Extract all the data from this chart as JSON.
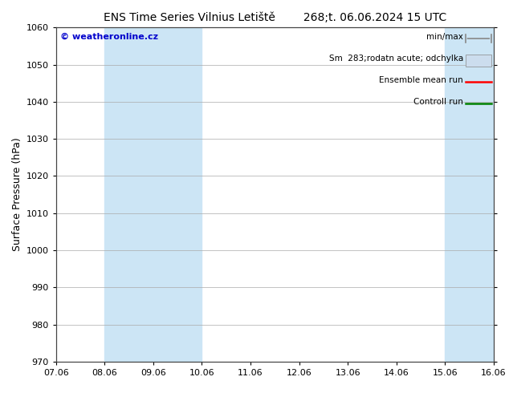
{
  "title_left": "ENS Time Series Vilnius Letiště",
  "title_right": "268;t. 06.06.2024 15 UTC",
  "ylabel": "Surface Pressure (hPa)",
  "ylim": [
    970,
    1060
  ],
  "yticks": [
    970,
    980,
    990,
    1000,
    1010,
    1020,
    1030,
    1040,
    1050,
    1060
  ],
  "xlabels": [
    "07.06",
    "08.06",
    "09.06",
    "10.06",
    "11.06",
    "12.06",
    "13.06",
    "14.06",
    "15.06",
    "16.06"
  ],
  "x_positions": [
    0,
    1,
    2,
    3,
    4,
    5,
    6,
    7,
    8,
    9
  ],
  "shaded_bands": [
    {
      "xmin": 1,
      "xmax": 3,
      "color": "#cce5f5"
    },
    {
      "xmin": 8,
      "xmax": 9,
      "color": "#cce5f5"
    }
  ],
  "legend_items": [
    {
      "label": "min/max",
      "color": "#aaaaaa",
      "type": "hbar"
    },
    {
      "label": "Sm  283;rodatn acute; odchylka",
      "color": "#ccddee",
      "type": "band"
    },
    {
      "label": "Ensemble mean run",
      "color": "#ff0000",
      "type": "line"
    },
    {
      "label": "Controll run",
      "color": "#008000",
      "type": "line"
    }
  ],
  "watermark": "© weatheronline.cz",
  "watermark_color": "#0000cc",
  "bg_color": "#ffffff",
  "plot_bg_color": "#ffffff",
  "title_fontsize": 10,
  "tick_fontsize": 8,
  "ylabel_fontsize": 9,
  "legend_fontsize": 7.5
}
